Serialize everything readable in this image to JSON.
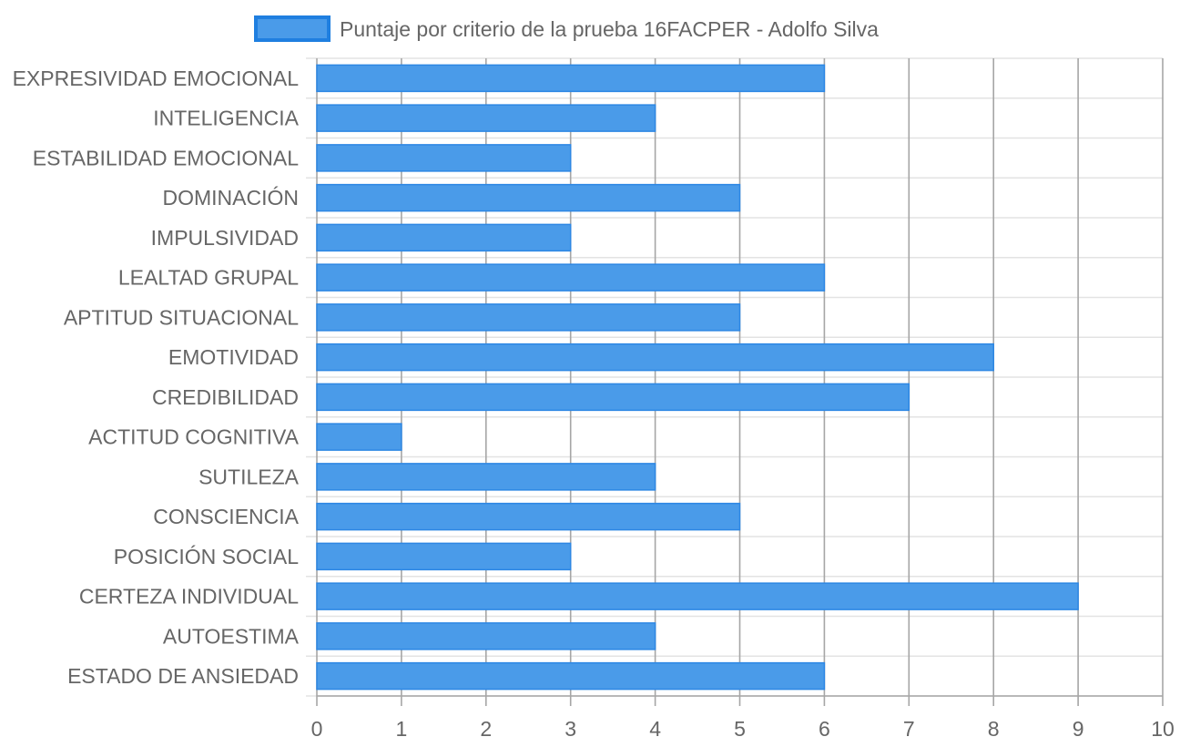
{
  "chart_data": {
    "type": "bar",
    "orientation": "horizontal",
    "categories": [
      "EXPRESIVIDAD EMOCIONAL",
      "INTELIGENCIA",
      "ESTABILIDAD EMOCIONAL",
      "DOMINACIÓN",
      "IMPULSIVIDAD",
      "LEALTAD GRUPAL",
      "APTITUD SITUACIONAL",
      "EMOTIVIDAD",
      "CREDIBILIDAD",
      "ACTITUD COGNITIVA",
      "SUTILEZA",
      "CONSCIENCIA",
      "POSICIÓN SOCIAL",
      "CERTEZA INDIVIDUAL",
      "AUTOESTIMA",
      "ESTADO DE ANSIEDAD"
    ],
    "series": [
      {
        "name": "Puntaje por criterio de la prueba 16FACPER - Adolfo Silva",
        "values": [
          6,
          4,
          3,
          5,
          3,
          6,
          5,
          8,
          7,
          1,
          4,
          5,
          3,
          9,
          4,
          6
        ]
      }
    ],
    "xlim": [
      0,
      10
    ],
    "xticks": [
      "0",
      "1",
      "2",
      "3",
      "4",
      "5",
      "6",
      "7",
      "8",
      "9",
      "10"
    ],
    "legend_position": "top",
    "grid": true,
    "colors": {
      "bar_fill": "#4a9be9",
      "bar_border": "#2d87e4",
      "legend_fill": "#4a9be9",
      "legend_border": "#1f7fe0"
    }
  }
}
